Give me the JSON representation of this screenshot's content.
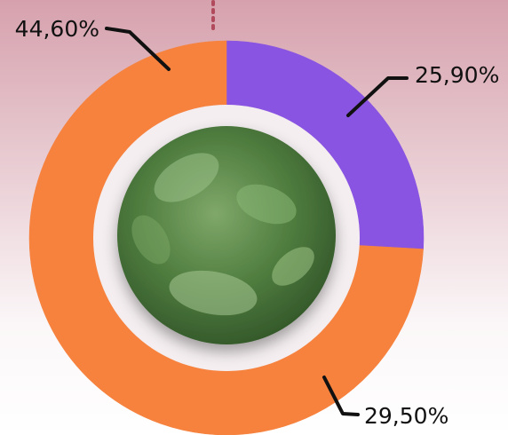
{
  "chart_data": {
    "type": "donut",
    "categories": [
      null,
      null,
      null
    ],
    "values": [
      25.9,
      29.5,
      44.6
    ],
    "value_labels": [
      "25,90%",
      "29,50%",
      "44,60%"
    ],
    "colors": [
      "#8a54e2",
      "#f6823e",
      "#f6823e"
    ]
  }
}
